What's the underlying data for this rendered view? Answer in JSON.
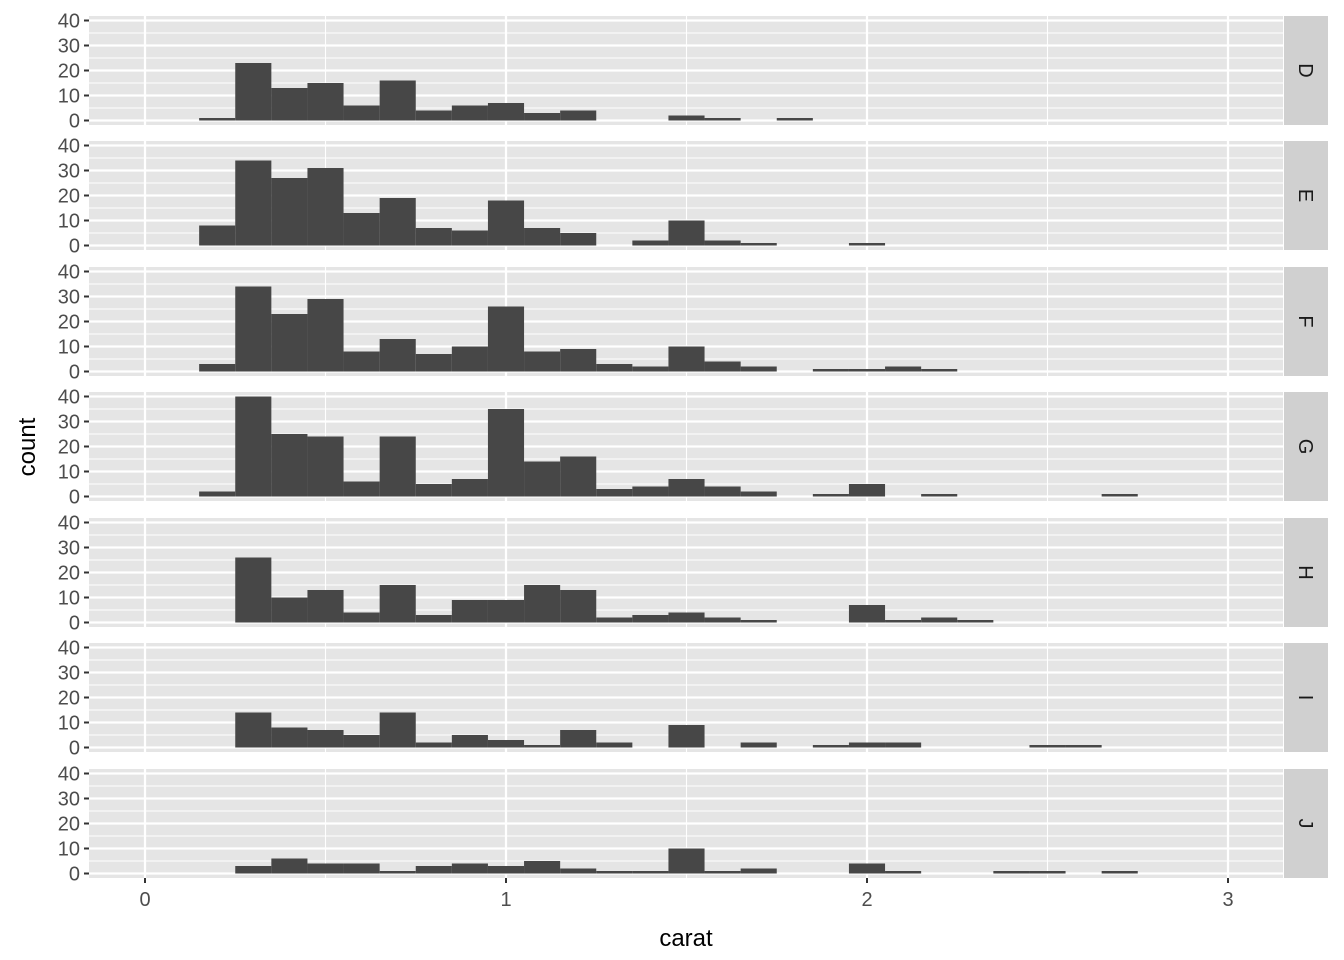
{
  "chart_data": {
    "type": "bar",
    "subtype": "faceted-histogram",
    "title": "",
    "xlabel": "carat",
    "ylabel": "count",
    "xlim": [
      -0.15,
      3.16
    ],
    "ylim": [
      0,
      42
    ],
    "x_ticks": [
      0,
      1,
      2,
      3
    ],
    "x_tick_labels": [
      "0",
      "1",
      "2",
      "3"
    ],
    "y_ticks": [
      0,
      10,
      20,
      30,
      40
    ],
    "y_tick_labels": [
      "0",
      "10",
      "20",
      "30",
      "40"
    ],
    "grid": true,
    "legend": "none",
    "facet_by": "color",
    "bin_width": 0.1,
    "bin_centers": [
      0.2,
      0.3,
      0.4,
      0.5,
      0.6,
      0.7,
      0.8,
      0.9,
      1.0,
      1.1,
      1.2,
      1.3,
      1.4,
      1.5,
      1.6,
      1.7,
      1.8,
      1.9,
      2.0,
      2.1,
      2.2,
      2.3,
      2.4,
      2.5,
      2.6,
      2.7
    ],
    "series": [
      {
        "name": "D",
        "values": [
          1,
          23,
          13,
          15,
          6,
          16,
          4,
          6,
          7,
          3,
          4,
          0,
          0,
          2,
          1,
          0,
          1,
          0,
          0,
          0,
          0,
          0,
          0,
          0,
          0,
          0
        ]
      },
      {
        "name": "E",
        "values": [
          8,
          34,
          27,
          31,
          13,
          19,
          7,
          6,
          18,
          7,
          5,
          0,
          2,
          10,
          2,
          1,
          0,
          0,
          1,
          0,
          0,
          0,
          0,
          0,
          0,
          0
        ]
      },
      {
        "name": "F",
        "values": [
          3,
          34,
          23,
          29,
          8,
          13,
          7,
          10,
          26,
          8,
          9,
          3,
          2,
          10,
          4,
          2,
          0,
          1,
          1,
          2,
          1,
          0,
          0,
          0,
          0,
          0
        ]
      },
      {
        "name": "G",
        "values": [
          2,
          40,
          25,
          24,
          6,
          24,
          5,
          7,
          35,
          14,
          16,
          3,
          4,
          7,
          4,
          2,
          0,
          1,
          5,
          0,
          1,
          0,
          0,
          0,
          0,
          1
        ]
      },
      {
        "name": "H",
        "values": [
          0,
          26,
          10,
          13,
          4,
          15,
          3,
          9,
          9,
          15,
          13,
          2,
          3,
          4,
          2,
          1,
          0,
          0,
          7,
          1,
          2,
          1,
          0,
          0,
          0,
          0
        ]
      },
      {
        "name": "I",
        "values": [
          0,
          14,
          8,
          7,
          5,
          14,
          2,
          5,
          3,
          1,
          7,
          2,
          0,
          9,
          0,
          2,
          0,
          1,
          2,
          2,
          0,
          0,
          0,
          1,
          1,
          0
        ]
      },
      {
        "name": "J",
        "values": [
          0,
          3,
          6,
          4,
          4,
          1,
          3,
          4,
          3,
          5,
          2,
          1,
          1,
          10,
          1,
          2,
          0,
          0,
          4,
          1,
          0,
          0,
          1,
          1,
          0,
          1
        ]
      }
    ]
  },
  "colors": {
    "bar_fill": "#474747",
    "panel_bg": "#e5e5e5",
    "grid_major": "#ffffff",
    "strip_bg": "#d0d0d0",
    "tick_text": "#4d4d4d",
    "tick_mark": "#333333"
  }
}
